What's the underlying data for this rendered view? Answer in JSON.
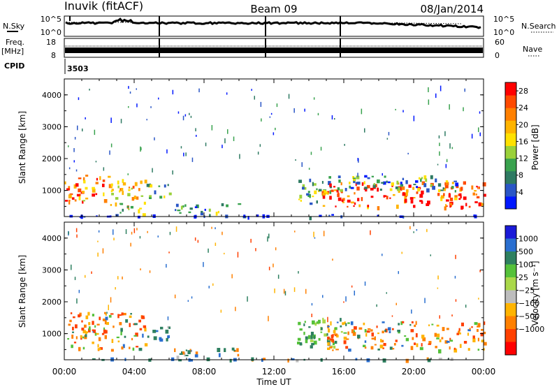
{
  "header": {
    "station": "Inuvik (fitACF)",
    "beam": "Beam 09",
    "date": "08/Jan/2014"
  },
  "top_panels": {
    "nsky_label": "N.Sky",
    "nsky_ticks": [
      "10^5",
      "10^0"
    ],
    "nsearch_label": "N.Search",
    "nsearch_ticks": [
      "10^5",
      "10^0"
    ],
    "freq_label": "Freq.",
    "freq_unit": "[MHz]",
    "freq_ticks": [
      "18",
      "8"
    ],
    "nave_label": "Nave",
    "nave_ticks": [
      "60",
      "0"
    ],
    "cpid_label": "CPID",
    "cpid_value": "3503"
  },
  "chart_data": [
    {
      "type": "heatmap",
      "name": "power-panel",
      "ylabel": "Slant Range [km]",
      "xlabel": "",
      "yticks": [
        "1000",
        "2000",
        "3000",
        "4000"
      ],
      "ylim": [
        180,
        4500
      ],
      "xlim": [
        0,
        24
      ],
      "colorbar": {
        "label": "Power [dB]",
        "ticks": [
          "4",
          "8",
          "12",
          "16",
          "20",
          "24",
          "28"
        ],
        "range": [
          0,
          30
        ],
        "colors": [
          "#0018ff",
          "#2a56c6",
          "#2e7a62",
          "#39a24e",
          "#9ad13a",
          "#ffe100",
          "#ffb400",
          "#ff8000",
          "#ff4a00",
          "#ff0000"
        ]
      },
      "blobs": [
        {
          "t0": 0.0,
          "t1": 2.6,
          "r0": 650,
          "r1": 1500,
          "level": 0.72
        },
        {
          "t0": 2.6,
          "t1": 4.6,
          "r0": 500,
          "r1": 1400,
          "level": 0.6
        },
        {
          "t0": 4.6,
          "t1": 6.0,
          "r0": 800,
          "r1": 1300,
          "level": 0.35
        },
        {
          "t0": 3.0,
          "t1": 4.6,
          "r0": 250,
          "r1": 520,
          "level": 0.4
        },
        {
          "t0": 6.2,
          "t1": 10.0,
          "r0": 300,
          "r1": 600,
          "level": 0.3
        },
        {
          "t0": 13.3,
          "t1": 15.2,
          "r0": 600,
          "r1": 1450,
          "level": 0.35
        },
        {
          "t0": 14.5,
          "t1": 24.0,
          "r0": 500,
          "r1": 1300,
          "level": 0.82
        },
        {
          "t0": 15.5,
          "t1": 22.5,
          "r0": 1000,
          "r1": 1500,
          "level": 0.3
        },
        {
          "t0": 0.0,
          "t1": 24.0,
          "r0": 190,
          "r1": 260,
          "level": 0.05
        }
      ]
    },
    {
      "type": "heatmap",
      "name": "velocity-panel",
      "ylabel": "Slant Range [km]",
      "xlabel": "Time UT",
      "yticks": [
        "1000",
        "2000",
        "3000",
        "4000"
      ],
      "ylim": [
        180,
        4500
      ],
      "xlim": [
        0,
        24
      ],
      "xticks": [
        "00:00",
        "04:00",
        "08:00",
        "12:00",
        "16:00",
        "20:00",
        "00:00"
      ],
      "colorbar": {
        "label": "Velocity [m s⁻¹]",
        "ticks": [
          "1000",
          "500",
          "100",
          "25",
          "−25",
          "−100",
          "−500",
          "−1000"
        ],
        "colors": [
          "#1a1ad8",
          "#2a6fd0",
          "#2e8060",
          "#55c13a",
          "#aad84a",
          "#bdbdbd",
          "#ffb400",
          "#ff8000",
          "#ff4000",
          "#ff0000"
        ]
      },
      "blobs": [
        {
          "t0": 0.0,
          "t1": 4.6,
          "r0": 500,
          "r1": 1700,
          "level": 0.7
        },
        {
          "t0": 4.6,
          "t1": 6.0,
          "r0": 800,
          "r1": 1300,
          "level": 0.35
        },
        {
          "t0": 6.2,
          "t1": 10.0,
          "r0": 300,
          "r1": 600,
          "level": 0.35
        },
        {
          "t0": 13.3,
          "t1": 16.0,
          "r0": 600,
          "r1": 1500,
          "level": 0.25
        },
        {
          "t0": 15.0,
          "t1": 24.0,
          "r0": 500,
          "r1": 1400,
          "level": 0.65
        },
        {
          "t0": 0.0,
          "t1": 24.0,
          "r0": 190,
          "r1": 260,
          "level": 0.45
        }
      ]
    }
  ]
}
